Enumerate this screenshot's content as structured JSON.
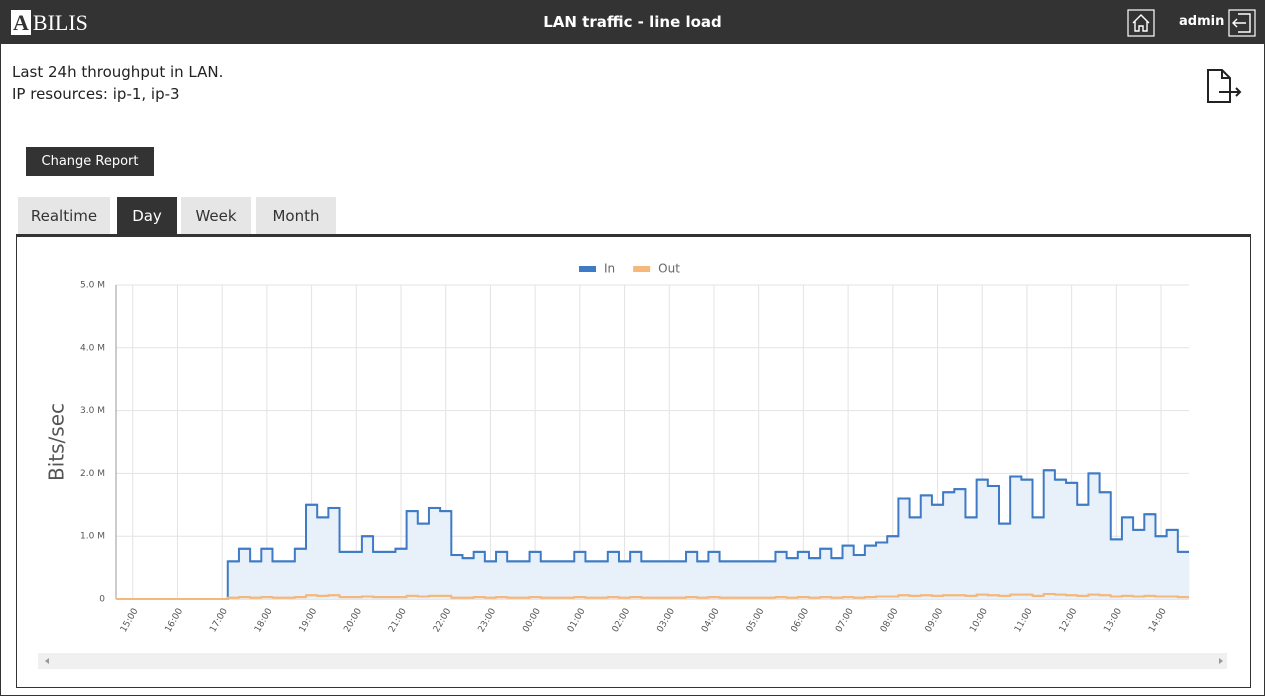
{
  "header": {
    "logo": "ABILIS",
    "title": "LAN traffic - line load",
    "user": "admin"
  },
  "description": [
    "Last 24h throughput in LAN.",
    "IP resources: ip-1, ip-3"
  ],
  "button": "Change Report",
  "tabs": [
    "Realtime",
    "Day",
    "Week",
    "Month"
  ],
  "active_tab": "Day",
  "chart_data": {
    "type": "step",
    "y_label": "Bits/sec",
    "categories": [
      null,
      "15:00",
      null,
      null,
      null,
      "16:00",
      null,
      null,
      null,
      "17:00",
      null,
      null,
      null,
      "18:00",
      null,
      null,
      null,
      "19:00",
      null,
      null,
      null,
      "20:00",
      null,
      null,
      null,
      "21:00",
      null,
      null,
      null,
      "22:00",
      null,
      null,
      null,
      "23:00",
      null,
      null,
      null,
      "00:00",
      null,
      null,
      null,
      "01:00",
      null,
      null,
      null,
      "02:00",
      null,
      null,
      null,
      "03:00",
      null,
      null,
      null,
      "04:00",
      null,
      null,
      null,
      "05:00",
      null,
      null,
      null,
      "06:00",
      null,
      null,
      null,
      "07:00",
      null,
      null,
      null,
      "08:00",
      null,
      null,
      null,
      "09:00",
      null,
      null,
      null,
      "10:00",
      null,
      null,
      null,
      "11:00",
      null,
      null,
      null,
      "12:00",
      null,
      null,
      null,
      "13:00",
      null,
      null,
      null,
      "14:00",
      null,
      null
    ],
    "series": [
      {
        "name": "In",
        "color": "#3f7bc4",
        "fill": "#e8f0fa",
        "values": [
          0,
          0,
          0,
          0,
          0,
          0,
          0,
          0,
          0,
          0,
          600000,
          800000,
          600000,
          800000,
          600000,
          600000,
          800000,
          1500000,
          1300000,
          1450000,
          750000,
          750000,
          1000000,
          750000,
          750000,
          800000,
          1400000,
          1200000,
          1450000,
          1400000,
          700000,
          650000,
          750000,
          600000,
          750000,
          600000,
          600000,
          750000,
          600000,
          600000,
          600000,
          750000,
          600000,
          600000,
          750000,
          600000,
          750000,
          600000,
          600000,
          600000,
          600000,
          750000,
          600000,
          750000,
          600000,
          600000,
          600000,
          600000,
          600000,
          750000,
          650000,
          750000,
          650000,
          800000,
          650000,
          850000,
          700000,
          850000,
          900000,
          1000000,
          1600000,
          1300000,
          1650000,
          1500000,
          1700000,
          1750000,
          1300000,
          1900000,
          1800000,
          1200000,
          1950000,
          1900000,
          1300000,
          2050000,
          1900000,
          1850000,
          1500000,
          2000000,
          1700000,
          950000,
          1300000,
          1100000,
          1350000,
          1000000,
          1100000,
          750000
        ]
      },
      {
        "name": "Out",
        "color": "#f5b77a",
        "values": [
          0,
          0,
          0,
          0,
          0,
          0,
          0,
          0,
          0,
          0,
          20000,
          30000,
          20000,
          30000,
          20000,
          20000,
          30000,
          60000,
          50000,
          60000,
          30000,
          30000,
          40000,
          30000,
          30000,
          30000,
          50000,
          40000,
          50000,
          50000,
          20000,
          20000,
          30000,
          20000,
          30000,
          20000,
          20000,
          30000,
          20000,
          20000,
          20000,
          30000,
          20000,
          20000,
          30000,
          20000,
          30000,
          20000,
          20000,
          20000,
          20000,
          30000,
          20000,
          30000,
          20000,
          20000,
          20000,
          20000,
          20000,
          30000,
          20000,
          30000,
          20000,
          30000,
          20000,
          30000,
          20000,
          30000,
          40000,
          40000,
          60000,
          50000,
          60000,
          50000,
          60000,
          60000,
          50000,
          70000,
          60000,
          50000,
          70000,
          70000,
          50000,
          80000,
          70000,
          60000,
          50000,
          70000,
          60000,
          40000,
          50000,
          40000,
          50000,
          40000,
          40000,
          30000
        ]
      }
    ],
    "ylim": [
      0,
      5000000
    ],
    "yticks": [
      0,
      {
        "value": 1000000,
        "label": "1.0 M"
      },
      {
        "value": 2000000,
        "label": "2.0 M"
      },
      {
        "value": 3000000,
        "label": "3.0 M"
      },
      {
        "value": 4000000,
        "label": "4.0 M"
      },
      {
        "value": 5000000,
        "label": "5.0 M"
      }
    ],
    "grid": true
  }
}
